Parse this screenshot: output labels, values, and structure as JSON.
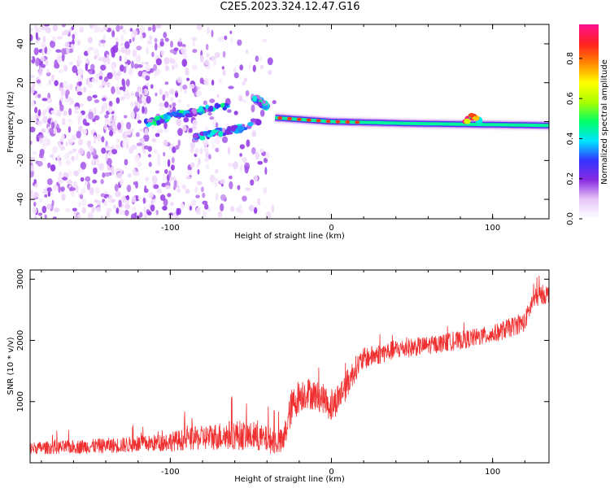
{
  "title": "C2E5.2023.324.12.47.G16",
  "colors": {
    "snr_line": "#f03030",
    "background": "#ffffff",
    "axis": "#000000"
  },
  "chart_data": [
    {
      "type": "heatmap",
      "name": "spectrogram",
      "xlabel": "Height of straight line (km)",
      "ylabel": "Frequency (Hz)",
      "xlim": [
        -187,
        135
      ],
      "ylim": [
        -50,
        50
      ],
      "x_ticks": [
        -100,
        0,
        100
      ],
      "x_tick_labels": [
        "-100",
        "0",
        "100"
      ],
      "y_ticks": [
        -40,
        -20,
        0,
        20,
        40
      ],
      "y_tick_labels": [
        "-40",
        "-20",
        "0",
        "20",
        "40"
      ],
      "colorbar": {
        "label": "Normalized spectral amplitude",
        "range": [
          0,
          0.97
        ],
        "ticks": [
          0,
          0.2,
          0.4,
          0.6,
          0.8
        ],
        "tick_labels": [
          "0.0",
          "0.2",
          "0.4",
          "0.6",
          "0.8"
        ],
        "colormap": [
          "#ffffff",
          "#e8c8f8",
          "#8a2be2",
          "#3333ff",
          "#00e5ff",
          "#00ff66",
          "#aaff00",
          "#ffff00",
          "#ff8800",
          "#ff2020",
          "#ff1090"
        ]
      },
      "features": [
        {
          "kind": "noise",
          "x_range": [
            -187,
            -35
          ],
          "y_range": [
            -50,
            50
          ],
          "amplitude": 0.15
        },
        {
          "kind": "branch",
          "x": [
            -115,
            -97,
            -80,
            -65
          ],
          "y": [
            -1,
            3,
            6,
            8
          ],
          "amplitude": 0.45
        },
        {
          "kind": "branch",
          "x": [
            -85,
            -65,
            -55,
            -45
          ],
          "y": [
            -8,
            -5,
            -3,
            1
          ],
          "amplitude": 0.4
        },
        {
          "kind": "blob",
          "x": [
            -48,
            -40
          ],
          "y": [
            12,
            8
          ],
          "amplitude": 0.45
        },
        {
          "kind": "carrier",
          "x": [
            -35,
            0,
            50,
            135
          ],
          "y": [
            2,
            0,
            -1,
            -2
          ],
          "amplitude": 0.45
        },
        {
          "kind": "bump",
          "x": [
            83,
            88,
            92
          ],
          "y": [
            0,
            3,
            0
          ],
          "amplitude": 0.9
        }
      ]
    },
    {
      "type": "line",
      "name": "snr",
      "xlabel": "Height of straight line (km)",
      "ylabel": "SNR (10 * v/v)",
      "xlim": [
        -187,
        135
      ],
      "ylim": [
        0,
        3150
      ],
      "x_ticks": [
        -100,
        0,
        100
      ],
      "x_tick_labels": [
        "-100",
        "0",
        "100"
      ],
      "y_ticks": [
        1000,
        2000,
        3000
      ],
      "y_tick_labels": [
        "1000",
        "2000",
        "3000"
      ],
      "series": [
        {
          "x": [
            -187,
            -170,
            -150,
            -130,
            -110,
            -90,
            -75,
            -60,
            -50,
            -40,
            -30,
            -25,
            -20,
            -15,
            -10,
            -5,
            0,
            5,
            10,
            15,
            20,
            30,
            40,
            60,
            80,
            100,
            110,
            120,
            125,
            130,
            135
          ],
          "y": [
            240,
            250,
            270,
            290,
            320,
            380,
            420,
            460,
            430,
            380,
            330,
            900,
            1100,
            1150,
            1100,
            1050,
            900,
            1100,
            1300,
            1550,
            1700,
            1780,
            1850,
            1920,
            2000,
            2100,
            2200,
            2300,
            2650,
            2750,
            2750
          ],
          "noise": [
            100,
            110,
            120,
            130,
            140,
            180,
            220,
            250,
            230,
            220,
            220,
            300,
            280,
            260,
            250,
            240,
            250,
            260,
            240,
            200,
            180,
            170,
            160,
            150,
            150,
            150,
            160,
            160,
            170,
            160,
            160
          ]
        }
      ]
    }
  ]
}
